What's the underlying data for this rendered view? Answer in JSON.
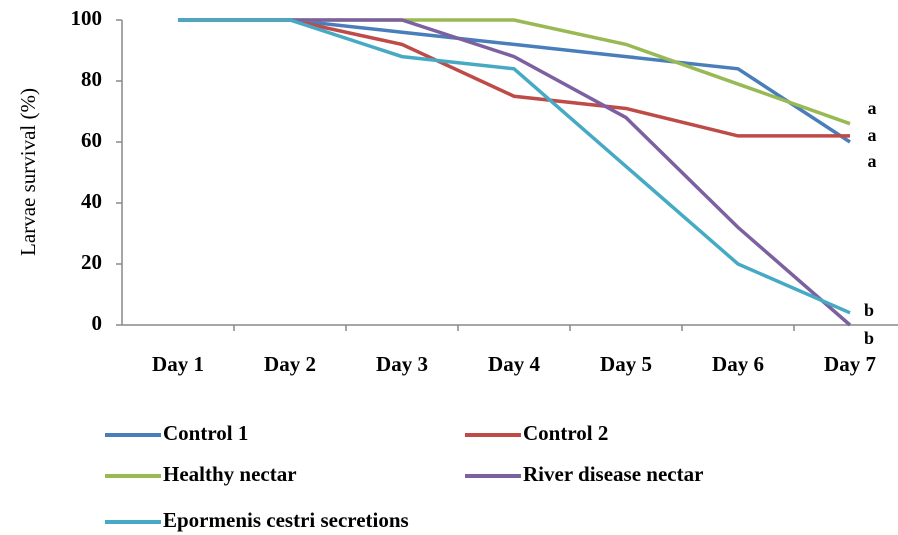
{
  "chart_data": {
    "type": "line",
    "ylabel": "Larvae survival (%)",
    "categories": [
      "Day 1",
      "Day 2",
      "Day 3",
      "Day 4",
      "Day 5",
      "Day 6",
      "Day 7"
    ],
    "series": [
      {
        "name": "Control 1",
        "color": "#4a7ebb",
        "values": [
          100,
          100,
          96,
          92,
          88,
          84,
          60
        ]
      },
      {
        "name": "Control 2",
        "color": "#be4b48",
        "values": [
          100,
          100,
          92,
          75,
          71,
          62,
          62
        ]
      },
      {
        "name": "Healthy nectar",
        "color": "#98b954",
        "values": [
          100,
          100,
          100,
          100,
          92,
          79,
          66
        ]
      },
      {
        "name": "River disease nectar",
        "color": "#7d60a0",
        "values": [
          100,
          100,
          100,
          88,
          68,
          32,
          0
        ]
      },
      {
        "name": "Epormenis cestri secretions",
        "color": "#46aac5",
        "values": [
          100,
          100,
          88,
          84,
          52,
          20,
          4
        ]
      }
    ],
    "annotations": [
      "a",
      "a",
      "a",
      "b",
      "b"
    ],
    "ylim": [
      0,
      100
    ],
    "yticks": [
      0,
      20,
      40,
      60,
      80,
      100
    ],
    "grid": false
  }
}
